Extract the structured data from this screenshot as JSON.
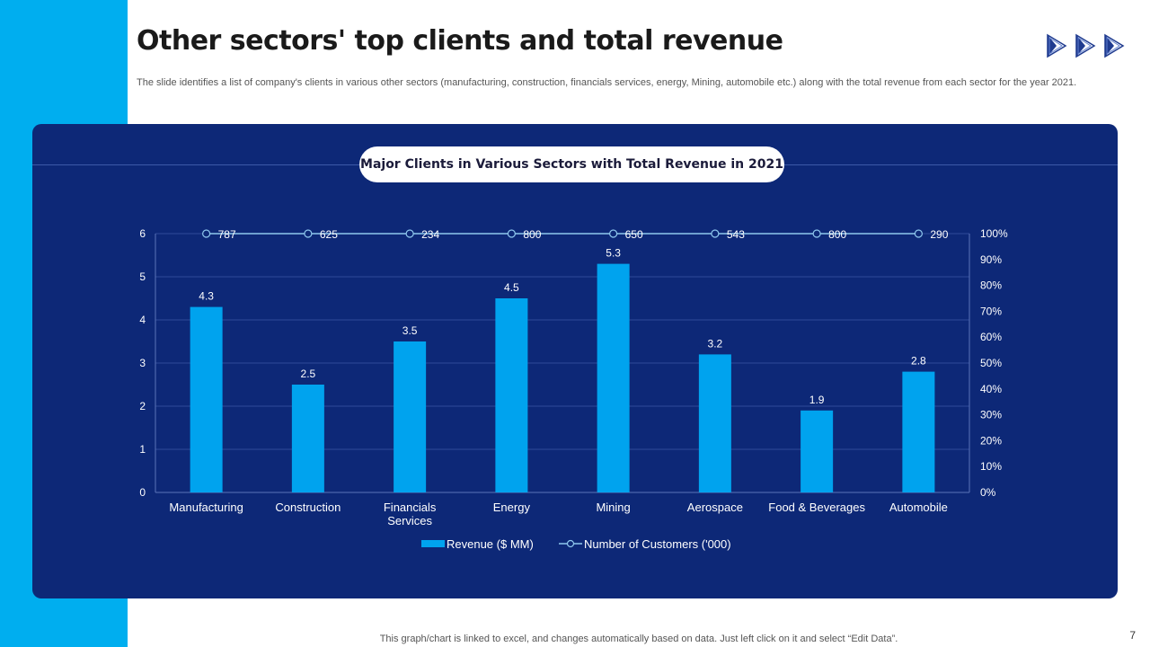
{
  "slide": {
    "title": "Other sectors' top clients and total revenue",
    "subtitle": "The slide identifies a list of company's clients in various other sectors (manufacturing, construction, financials services, energy, Mining, automobile etc.) along with the total revenue from each sector for the year 2021.",
    "footer_note": "This graph/chart is linked to excel,  and changes automatically based on data. Just left click on it and select “Edit Data”.",
    "page_number": "7",
    "decor_icon": "triple-play-arrows-icon"
  },
  "colors": {
    "accent_bar": "#00AEEF",
    "panel_bg": "#0D2877",
    "bar_fill": "#00A3EE",
    "line_color": "#8FC8EE",
    "axis_text": "#FFFFFF"
  },
  "chart_data": {
    "type": "bar",
    "title": "Major Clients in Various Sectors with Total Revenue in 2021",
    "categories": [
      "Manufacturing",
      "Construction",
      "Financials Services",
      "Energy",
      "Mining",
      "Aerospace",
      "Food & Beverages",
      "Automobile"
    ],
    "series": [
      {
        "name": "Revenue ($ MM)",
        "type": "bar",
        "axis": "left",
        "values": [
          4.3,
          2.5,
          3.5,
          4.5,
          5.3,
          3.2,
          1.9,
          2.8
        ],
        "labels": [
          "4.3",
          "2.5",
          "3.5",
          "4.5",
          "5.3",
          "3.2",
          "1.9",
          "2.8"
        ]
      },
      {
        "name": "Number of Customers ('000)",
        "type": "line",
        "axis": "right",
        "values": [
          787,
          625,
          234,
          800,
          650,
          543,
          800,
          290
        ],
        "labels": [
          "787",
          "625",
          "234",
          "800",
          "650",
          "543",
          "800",
          "290"
        ],
        "plotted_percent": 100
      }
    ],
    "y_left": {
      "min": 0,
      "max": 6,
      "ticks": [
        "0",
        "1",
        "2",
        "3",
        "4",
        "5",
        "6"
      ]
    },
    "y_right": {
      "min": 0,
      "max": 100,
      "ticks": [
        "0%",
        "10%",
        "20%",
        "30%",
        "40%",
        "50%",
        "60%",
        "70%",
        "80%",
        "90%",
        "100%"
      ]
    },
    "grid": true,
    "legend_position": "bottom-center"
  }
}
